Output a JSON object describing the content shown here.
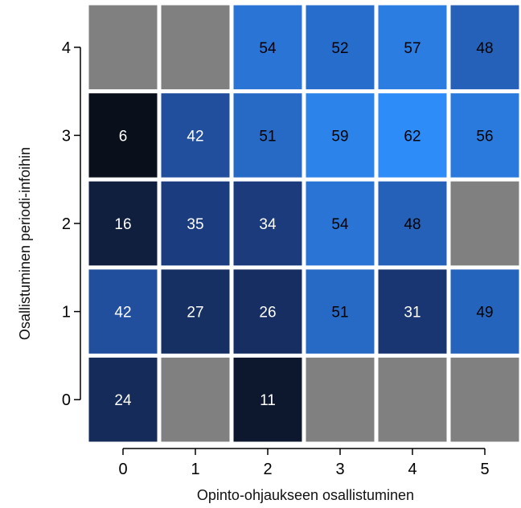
{
  "chart_data": {
    "type": "heatmap",
    "xlabel": "Opinto-ohjaukseen osallistuminen",
    "ylabel": "Osallistuminen periodi-infoihin",
    "x_categories": [
      "0",
      "1",
      "2",
      "3",
      "4",
      "5"
    ],
    "y_categories": [
      "0",
      "1",
      "2",
      "3",
      "4"
    ],
    "values": [
      [
        24,
        null,
        11,
        null,
        null,
        null
      ],
      [
        42,
        27,
        26,
        51,
        31,
        49
      ],
      [
        16,
        35,
        34,
        54,
        48,
        null
      ],
      [
        6,
        42,
        51,
        59,
        62,
        56
      ],
      [
        null,
        null,
        54,
        52,
        57,
        48
      ]
    ],
    "color_scale": {
      "low": "#0a0f1c",
      "mid": "#1d3f86",
      "high": "#2e8cf8",
      "missing": "#808080"
    },
    "grid": false
  }
}
